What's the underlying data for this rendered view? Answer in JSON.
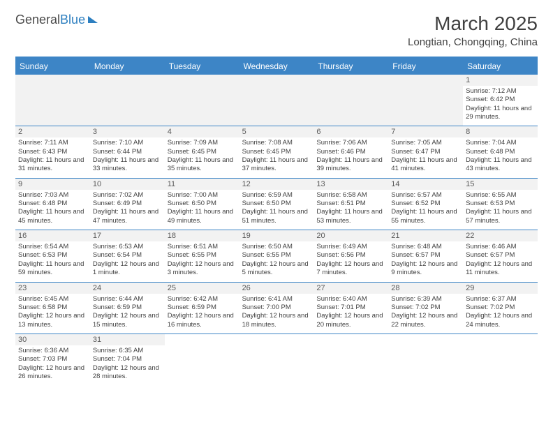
{
  "logo": {
    "part1": "General",
    "part2": "Blue"
  },
  "title": "March 2025",
  "subtitle": "Longtian, Chongqing, China",
  "day_headers": [
    "Sunday",
    "Monday",
    "Tuesday",
    "Wednesday",
    "Thursday",
    "Friday",
    "Saturday"
  ],
  "colors": {
    "header_bg": "#3d85c6",
    "header_text": "#ffffff",
    "text": "#404040",
    "day_num_bg": "#f2f2f2",
    "border": "#3d85c6"
  },
  "weeks": [
    [
      {
        "empty": true
      },
      {
        "empty": true
      },
      {
        "empty": true
      },
      {
        "empty": true
      },
      {
        "empty": true
      },
      {
        "empty": true
      },
      {
        "day": "1",
        "sunrise": "Sunrise: 7:12 AM",
        "sunset": "Sunset: 6:42 PM",
        "daylight": "Daylight: 11 hours and 29 minutes."
      }
    ],
    [
      {
        "day": "2",
        "sunrise": "Sunrise: 7:11 AM",
        "sunset": "Sunset: 6:43 PM",
        "daylight": "Daylight: 11 hours and 31 minutes."
      },
      {
        "day": "3",
        "sunrise": "Sunrise: 7:10 AM",
        "sunset": "Sunset: 6:44 PM",
        "daylight": "Daylight: 11 hours and 33 minutes."
      },
      {
        "day": "4",
        "sunrise": "Sunrise: 7:09 AM",
        "sunset": "Sunset: 6:45 PM",
        "daylight": "Daylight: 11 hours and 35 minutes."
      },
      {
        "day": "5",
        "sunrise": "Sunrise: 7:08 AM",
        "sunset": "Sunset: 6:45 PM",
        "daylight": "Daylight: 11 hours and 37 minutes."
      },
      {
        "day": "6",
        "sunrise": "Sunrise: 7:06 AM",
        "sunset": "Sunset: 6:46 PM",
        "daylight": "Daylight: 11 hours and 39 minutes."
      },
      {
        "day": "7",
        "sunrise": "Sunrise: 7:05 AM",
        "sunset": "Sunset: 6:47 PM",
        "daylight": "Daylight: 11 hours and 41 minutes."
      },
      {
        "day": "8",
        "sunrise": "Sunrise: 7:04 AM",
        "sunset": "Sunset: 6:48 PM",
        "daylight": "Daylight: 11 hours and 43 minutes."
      }
    ],
    [
      {
        "day": "9",
        "sunrise": "Sunrise: 7:03 AM",
        "sunset": "Sunset: 6:48 PM",
        "daylight": "Daylight: 11 hours and 45 minutes."
      },
      {
        "day": "10",
        "sunrise": "Sunrise: 7:02 AM",
        "sunset": "Sunset: 6:49 PM",
        "daylight": "Daylight: 11 hours and 47 minutes."
      },
      {
        "day": "11",
        "sunrise": "Sunrise: 7:00 AM",
        "sunset": "Sunset: 6:50 PM",
        "daylight": "Daylight: 11 hours and 49 minutes."
      },
      {
        "day": "12",
        "sunrise": "Sunrise: 6:59 AM",
        "sunset": "Sunset: 6:50 PM",
        "daylight": "Daylight: 11 hours and 51 minutes."
      },
      {
        "day": "13",
        "sunrise": "Sunrise: 6:58 AM",
        "sunset": "Sunset: 6:51 PM",
        "daylight": "Daylight: 11 hours and 53 minutes."
      },
      {
        "day": "14",
        "sunrise": "Sunrise: 6:57 AM",
        "sunset": "Sunset: 6:52 PM",
        "daylight": "Daylight: 11 hours and 55 minutes."
      },
      {
        "day": "15",
        "sunrise": "Sunrise: 6:55 AM",
        "sunset": "Sunset: 6:53 PM",
        "daylight": "Daylight: 11 hours and 57 minutes."
      }
    ],
    [
      {
        "day": "16",
        "sunrise": "Sunrise: 6:54 AM",
        "sunset": "Sunset: 6:53 PM",
        "daylight": "Daylight: 11 hours and 59 minutes."
      },
      {
        "day": "17",
        "sunrise": "Sunrise: 6:53 AM",
        "sunset": "Sunset: 6:54 PM",
        "daylight": "Daylight: 12 hours and 1 minute."
      },
      {
        "day": "18",
        "sunrise": "Sunrise: 6:51 AM",
        "sunset": "Sunset: 6:55 PM",
        "daylight": "Daylight: 12 hours and 3 minutes."
      },
      {
        "day": "19",
        "sunrise": "Sunrise: 6:50 AM",
        "sunset": "Sunset: 6:55 PM",
        "daylight": "Daylight: 12 hours and 5 minutes."
      },
      {
        "day": "20",
        "sunrise": "Sunrise: 6:49 AM",
        "sunset": "Sunset: 6:56 PM",
        "daylight": "Daylight: 12 hours and 7 minutes."
      },
      {
        "day": "21",
        "sunrise": "Sunrise: 6:48 AM",
        "sunset": "Sunset: 6:57 PM",
        "daylight": "Daylight: 12 hours and 9 minutes."
      },
      {
        "day": "22",
        "sunrise": "Sunrise: 6:46 AM",
        "sunset": "Sunset: 6:57 PM",
        "daylight": "Daylight: 12 hours and 11 minutes."
      }
    ],
    [
      {
        "day": "23",
        "sunrise": "Sunrise: 6:45 AM",
        "sunset": "Sunset: 6:58 PM",
        "daylight": "Daylight: 12 hours and 13 minutes."
      },
      {
        "day": "24",
        "sunrise": "Sunrise: 6:44 AM",
        "sunset": "Sunset: 6:59 PM",
        "daylight": "Daylight: 12 hours and 15 minutes."
      },
      {
        "day": "25",
        "sunrise": "Sunrise: 6:42 AM",
        "sunset": "Sunset: 6:59 PM",
        "daylight": "Daylight: 12 hours and 16 minutes."
      },
      {
        "day": "26",
        "sunrise": "Sunrise: 6:41 AM",
        "sunset": "Sunset: 7:00 PM",
        "daylight": "Daylight: 12 hours and 18 minutes."
      },
      {
        "day": "27",
        "sunrise": "Sunrise: 6:40 AM",
        "sunset": "Sunset: 7:01 PM",
        "daylight": "Daylight: 12 hours and 20 minutes."
      },
      {
        "day": "28",
        "sunrise": "Sunrise: 6:39 AM",
        "sunset": "Sunset: 7:02 PM",
        "daylight": "Daylight: 12 hours and 22 minutes."
      },
      {
        "day": "29",
        "sunrise": "Sunrise: 6:37 AM",
        "sunset": "Sunset: 7:02 PM",
        "daylight": "Daylight: 12 hours and 24 minutes."
      }
    ],
    [
      {
        "day": "30",
        "sunrise": "Sunrise: 6:36 AM",
        "sunset": "Sunset: 7:03 PM",
        "daylight": "Daylight: 12 hours and 26 minutes."
      },
      {
        "day": "31",
        "sunrise": "Sunrise: 6:35 AM",
        "sunset": "Sunset: 7:04 PM",
        "daylight": "Daylight: 12 hours and 28 minutes."
      },
      {
        "empty": true,
        "blank": true
      },
      {
        "empty": true,
        "blank": true
      },
      {
        "empty": true,
        "blank": true
      },
      {
        "empty": true,
        "blank": true
      },
      {
        "empty": true,
        "blank": true
      }
    ]
  ]
}
